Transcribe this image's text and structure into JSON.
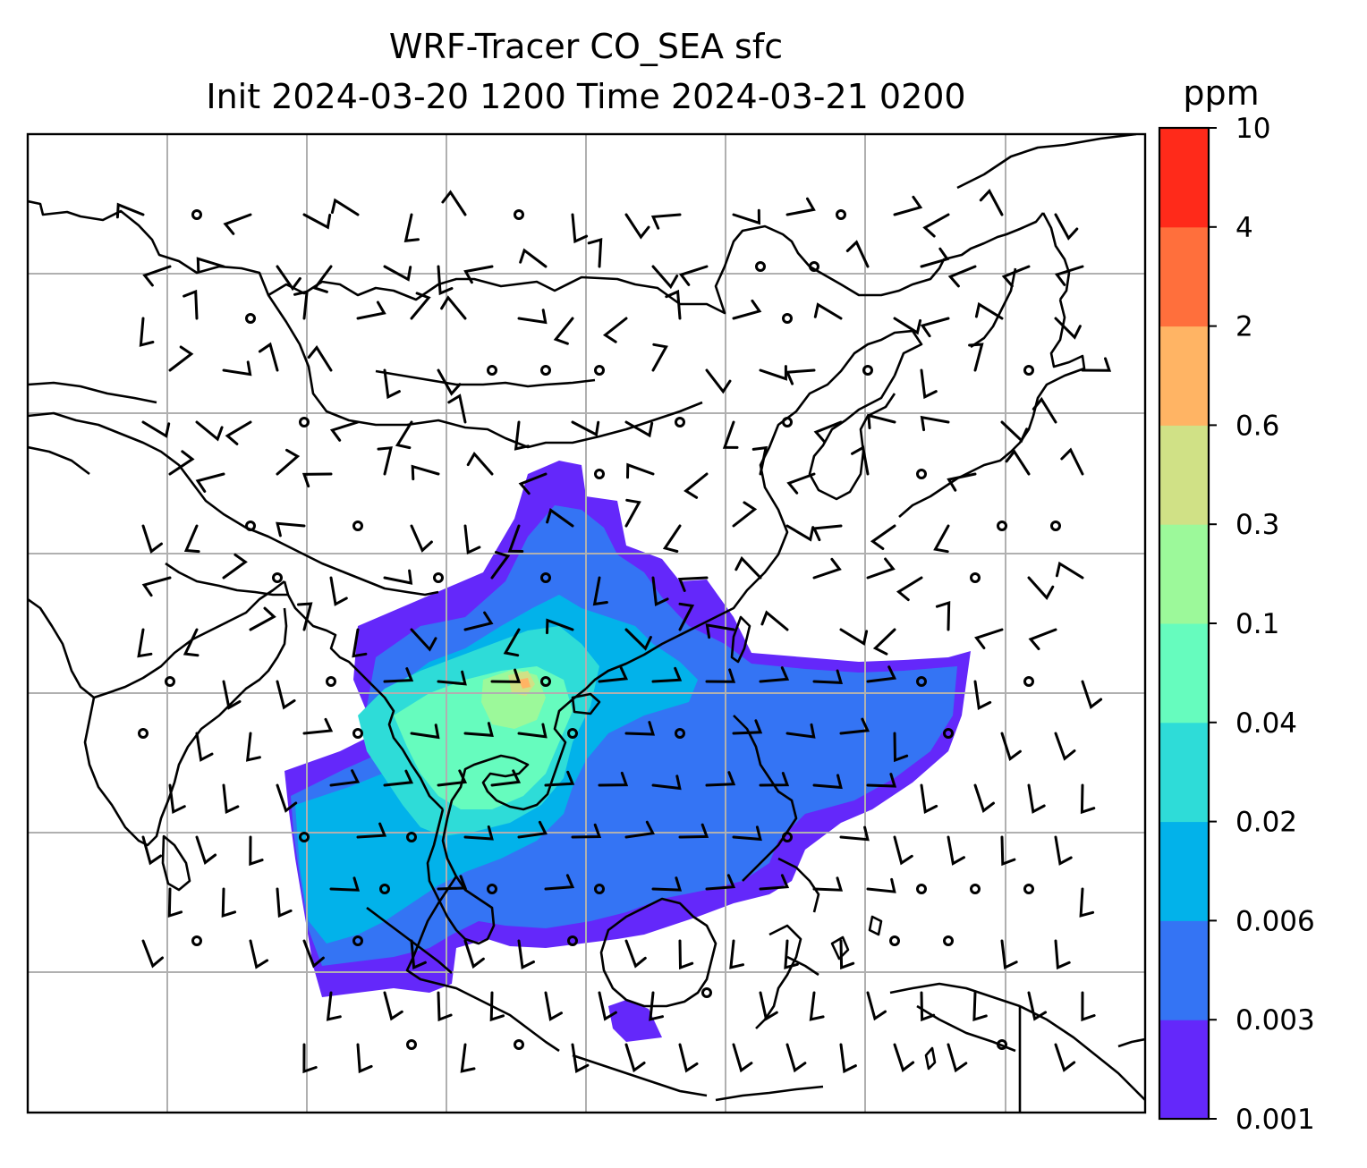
{
  "title_line1": "WRF-Tracer CO_SEA sfc",
  "title_line2": "Init 2024-03-20 1200 Time 2024-03-21 0200",
  "colorbar": {
    "unit": "ppm",
    "ticks": [
      "0.001",
      "0.003",
      "0.006",
      "0.02",
      "0.04",
      "0.1",
      "0.3",
      "0.6",
      "2",
      "4",
      "10"
    ],
    "colors": [
      "#6428fa",
      "#3474f4",
      "#02b2ea",
      "#2edcd8",
      "#66fcbe",
      "#9cf99a",
      "#d0e186",
      "#ffb464",
      "#ff6f3c",
      "#ff2a1a"
    ]
  },
  "map": {
    "gridlines": true,
    "gridline_color": "#b0b0b0",
    "coastline_color": "#000000",
    "field": "CO tracer concentration (filled contours)",
    "overlay": "wind barbs"
  }
}
